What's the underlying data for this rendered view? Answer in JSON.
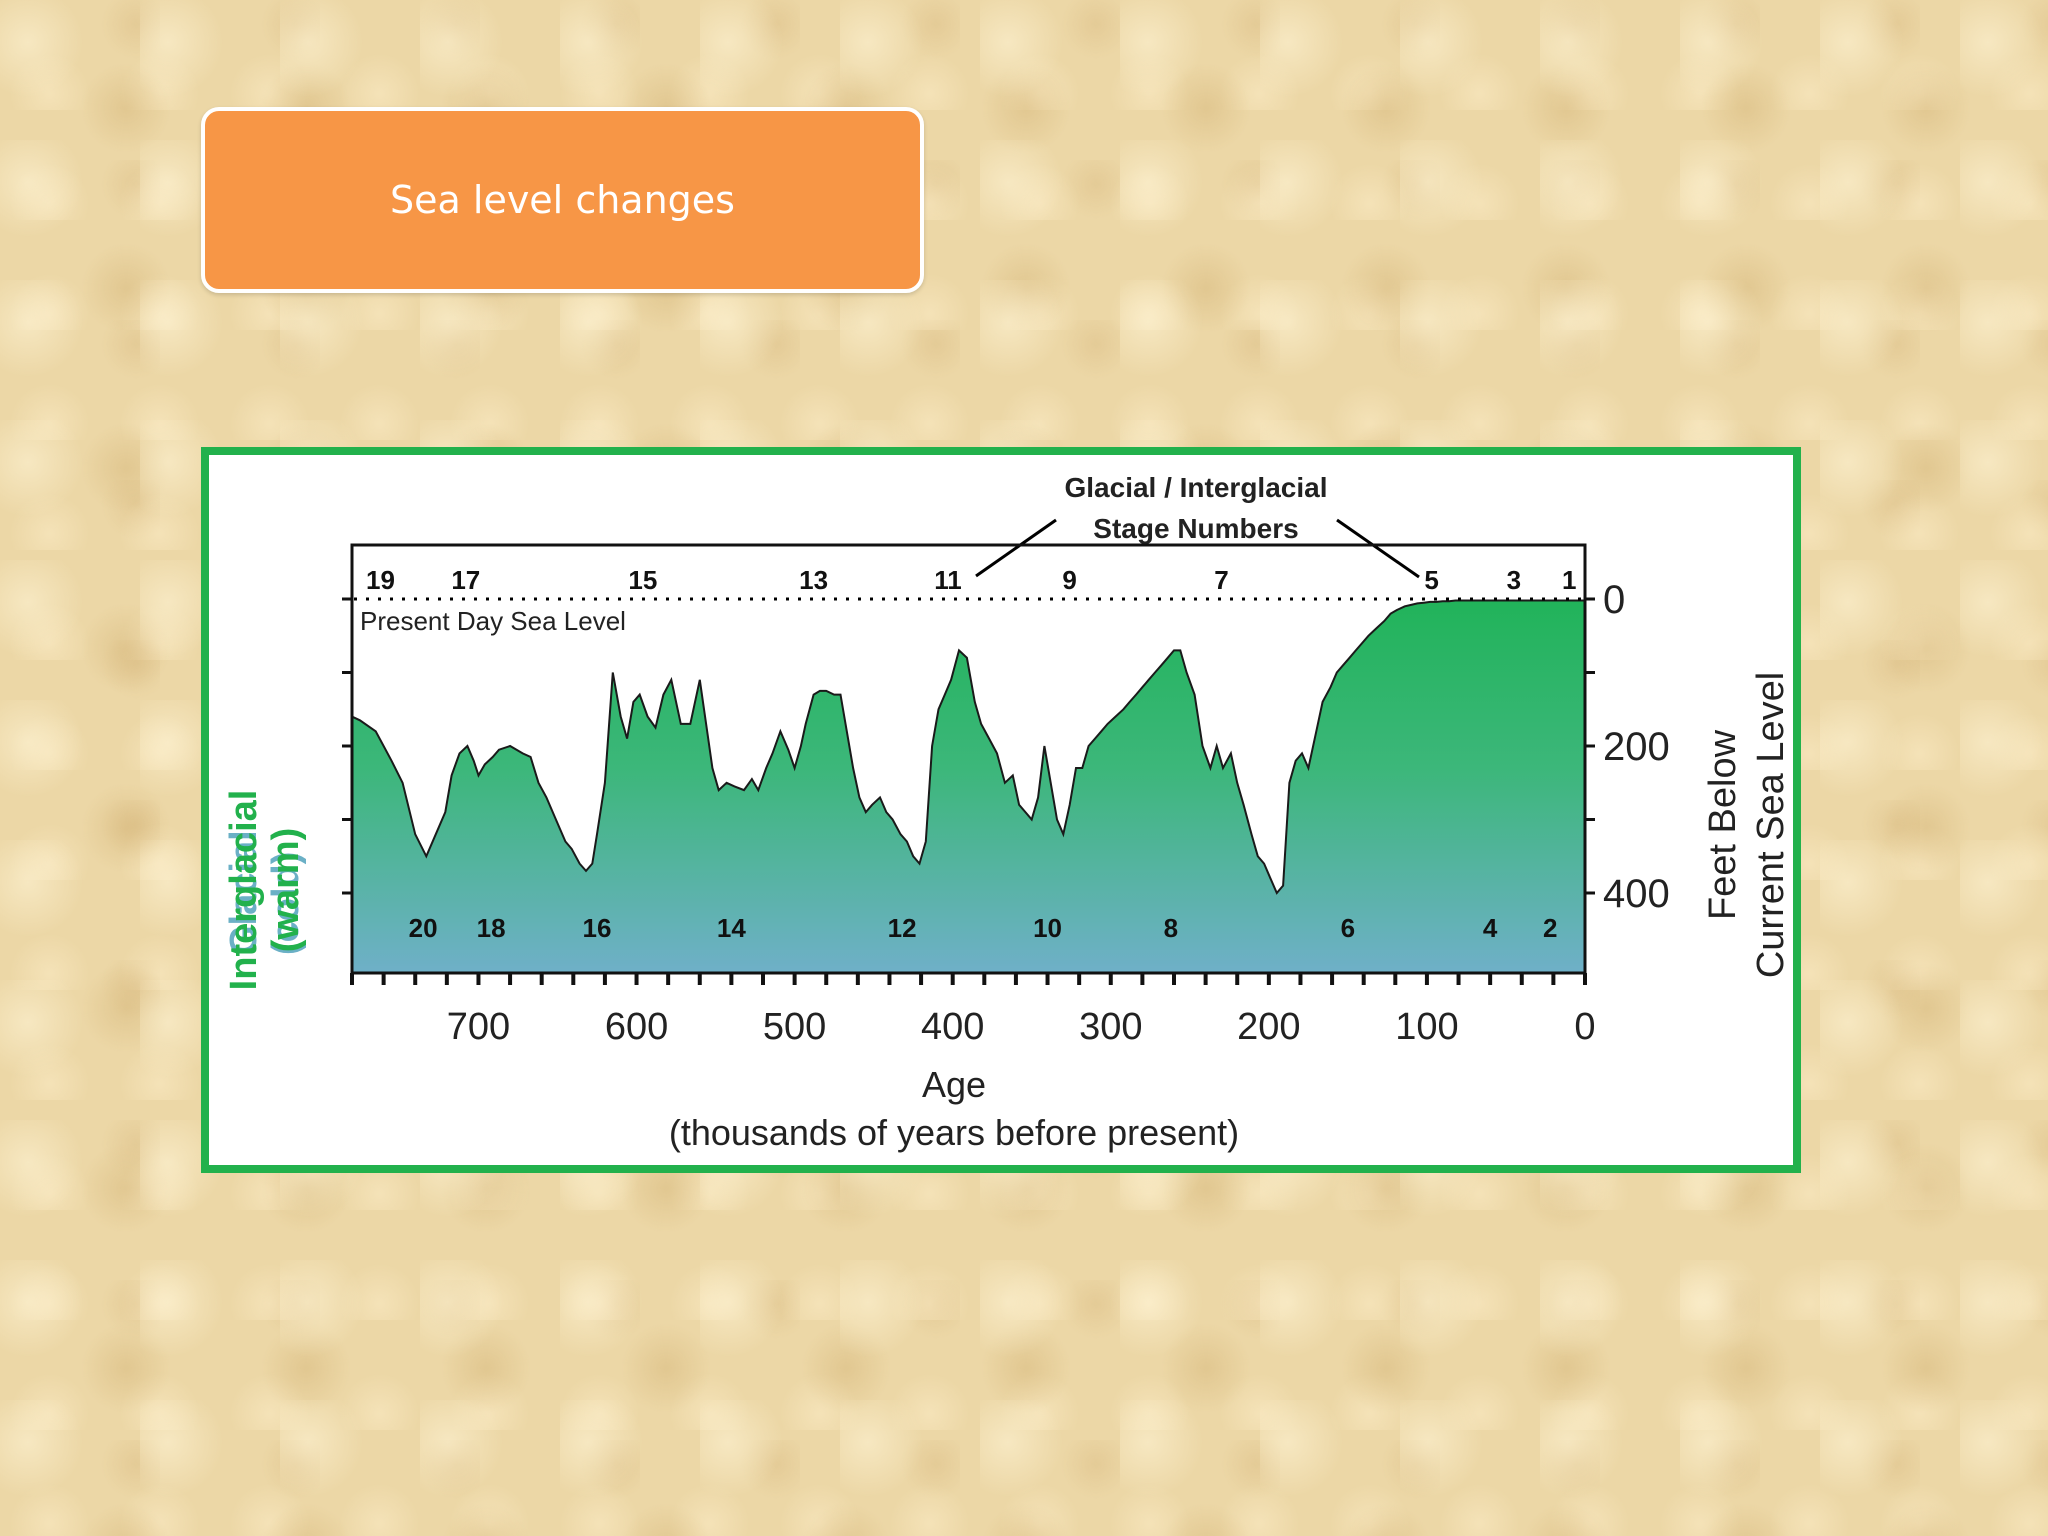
{
  "slide": {
    "title": "Sea level changes"
  },
  "colors": {
    "title_fill": "#f79646",
    "frame": "#22b14c",
    "area_top": "#21b35a",
    "area_bottom": "#6fb0c8",
    "glacial_label": "#6bb0c6",
    "interglacial_label": "#22b14c"
  },
  "chart_data": {
    "type": "area",
    "title": "Glacial / Interglacial Stage Numbers",
    "xlabel": "Age",
    "xlabel_sub": "(thousands of years before present)",
    "ylabel_line1": "Feet Below",
    "ylabel_line2": "Current Sea Level",
    "left_label_glacial": "Glacial",
    "left_label_cold": "(cold)",
    "left_label_interglacial": "Interglacial",
    "left_label_warm": "(warm)",
    "reference_label": "Present Day Sea Level",
    "xlim": [
      780,
      0
    ],
    "ylim": [
      0,
      450
    ],
    "x_ticks": [
      700,
      600,
      500,
      400,
      300,
      200,
      100,
      0
    ],
    "y_ticks": [
      0,
      200,
      400
    ],
    "series": [
      {
        "x": [
          780,
          775,
          765,
          755,
          748,
          740,
          733,
          727,
          721,
          717,
          712,
          707,
          703,
          700,
          696,
          691,
          687,
          680,
          672,
          667,
          662,
          657,
          651,
          645,
          641,
          636,
          632,
          628,
          625,
          620,
          615,
          610,
          606,
          602,
          598,
          593,
          588,
          583,
          578,
          572,
          566,
          560,
          556,
          552,
          548,
          543,
          538,
          532,
          527,
          523,
          518,
          514,
          509,
          504,
          500,
          496,
          493,
          488,
          484,
          480,
          475,
          471,
          467,
          463,
          459,
          455,
          451,
          446,
          442,
          438,
          433,
          429,
          425,
          421,
          417,
          413,
          409,
          405,
          401,
          396,
          391,
          386,
          382,
          377,
          372,
          367,
          362,
          358,
          354,
          350,
          346,
          342,
          338,
          334,
          330,
          326,
          322,
          318,
          314,
          310,
          306,
          302,
          297,
          292,
          288,
          284,
          280,
          276,
          272,
          268,
          264,
          260,
          256,
          252,
          247,
          242,
          237,
          233,
          229,
          224,
          220,
          216,
          211,
          207,
          203,
          199,
          195,
          191,
          187,
          183,
          179,
          175,
          170,
          166,
          161,
          157,
          153,
          149,
          145,
          141,
          137,
          132,
          127,
          123,
          119,
          114,
          110,
          106,
          102,
          98,
          94,
          90,
          86,
          82,
          78,
          74,
          70,
          66,
          62,
          58,
          54,
          50,
          46,
          42,
          38,
          34,
          30,
          26,
          22,
          18,
          14,
          10,
          6,
          3,
          0
        ],
        "y": [
          160,
          165,
          180,
          220,
          250,
          320,
          350,
          320,
          290,
          240,
          210,
          200,
          220,
          240,
          225,
          215,
          205,
          200,
          210,
          215,
          250,
          270,
          300,
          330,
          340,
          360,
          370,
          360,
          320,
          250,
          100,
          160,
          190,
          140,
          130,
          160,
          175,
          130,
          110,
          170,
          170,
          110,
          170,
          230,
          260,
          250,
          255,
          260,
          245,
          260,
          230,
          210,
          180,
          205,
          230,
          200,
          170,
          130,
          125,
          125,
          130,
          130,
          180,
          230,
          270,
          290,
          280,
          270,
          290,
          300,
          320,
          330,
          350,
          360,
          330,
          200,
          150,
          130,
          110,
          70,
          80,
          140,
          170,
          190,
          210,
          250,
          240,
          280,
          290,
          300,
          270,
          200,
          250,
          300,
          320,
          280,
          230,
          230,
          200,
          190,
          180,
          170,
          160,
          150,
          140,
          130,
          120,
          110,
          100,
          90,
          80,
          70,
          70,
          100,
          130,
          200,
          230,
          200,
          230,
          210,
          250,
          280,
          320,
          350,
          360,
          380,
          400,
          390,
          250,
          220,
          210,
          230,
          180,
          140,
          120,
          100,
          90,
          80,
          70,
          60,
          50,
          40,
          30,
          20,
          15,
          10,
          8,
          6,
          5,
          4,
          4,
          3,
          3,
          2,
          2,
          2,
          2,
          2,
          2,
          2,
          2,
          2,
          2,
          2,
          2,
          2,
          2,
          2,
          2,
          2,
          2,
          2,
          2,
          2,
          2
        ]
      }
    ],
    "glacial_stages": [
      {
        "label": "20",
        "x": 735
      },
      {
        "label": "18",
        "x": 692
      },
      {
        "label": "16",
        "x": 625
      },
      {
        "label": "14",
        "x": 540
      },
      {
        "label": "12",
        "x": 432
      },
      {
        "label": "10",
        "x": 340
      },
      {
        "label": "8",
        "x": 262
      },
      {
        "label": "6",
        "x": 150
      },
      {
        "label": "4",
        "x": 60
      },
      {
        "label": "2",
        "x": 22
      }
    ],
    "interglacial_stages": [
      {
        "label": "19",
        "x": 762
      },
      {
        "label": "17",
        "x": 708
      },
      {
        "label": "15",
        "x": 596
      },
      {
        "label": "13",
        "x": 488
      },
      {
        "label": "11",
        "x": 403
      },
      {
        "label": "9",
        "x": 326
      },
      {
        "label": "7",
        "x": 230
      },
      {
        "label": "5",
        "x": 97
      },
      {
        "label": "3",
        "x": 45
      },
      {
        "label": "1",
        "x": 10
      }
    ]
  }
}
